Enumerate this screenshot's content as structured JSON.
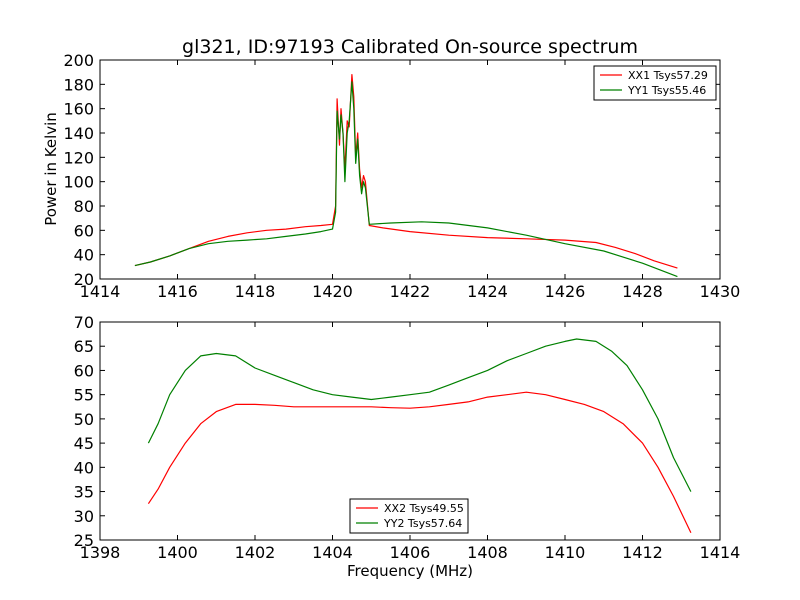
{
  "chart_data": [
    {
      "type": "line",
      "title": "gl321, ID:97193 Calibrated On-source spectrum",
      "xlabel": "",
      "ylabel": "Power in Kelvin",
      "xlim": [
        1414,
        1430
      ],
      "ylim": [
        20,
        200
      ],
      "xticks": [
        1414,
        1416,
        1418,
        1420,
        1422,
        1424,
        1426,
        1428,
        1430
      ],
      "yticks": [
        20,
        40,
        60,
        80,
        100,
        120,
        140,
        160,
        180,
        200
      ],
      "grid": false,
      "legend": "top-right",
      "series": [
        {
          "name": "XX1 Tsys57.29",
          "color": "#ff0000",
          "points": [
            [
              1414.9,
              31
            ],
            [
              1415.3,
              34
            ],
            [
              1415.8,
              39
            ],
            [
              1416.3,
              45
            ],
            [
              1416.8,
              51
            ],
            [
              1417.3,
              55
            ],
            [
              1417.8,
              58
            ],
            [
              1418.3,
              60
            ],
            [
              1418.8,
              61
            ],
            [
              1419.3,
              63
            ],
            [
              1419.7,
              64
            ],
            [
              1420.0,
              65
            ],
            [
              1420.08,
              80
            ],
            [
              1420.12,
              168
            ],
            [
              1420.18,
              130
            ],
            [
              1420.22,
              160
            ],
            [
              1420.27,
              140
            ],
            [
              1420.32,
              110
            ],
            [
              1420.38,
              150
            ],
            [
              1420.43,
              145
            ],
            [
              1420.5,
              188
            ],
            [
              1420.55,
              170
            ],
            [
              1420.6,
              120
            ],
            [
              1420.65,
              140
            ],
            [
              1420.7,
              110
            ],
            [
              1420.75,
              95
            ],
            [
              1420.8,
              105
            ],
            [
              1420.85,
              100
            ],
            [
              1420.95,
              64
            ],
            [
              1421.3,
              62
            ],
            [
              1422.0,
              59
            ],
            [
              1423.0,
              56
            ],
            [
              1424.0,
              54
            ],
            [
              1425.0,
              53
            ],
            [
              1426.0,
              52
            ],
            [
              1426.8,
              50
            ],
            [
              1427.3,
              46
            ],
            [
              1427.8,
              41
            ],
            [
              1428.3,
              35
            ],
            [
              1428.9,
              29
            ]
          ]
        },
        {
          "name": "YY1 Tsys55.46",
          "color": "#008000",
          "points": [
            [
              1414.9,
              31
            ],
            [
              1415.3,
              34
            ],
            [
              1415.8,
              39
            ],
            [
              1416.3,
              45
            ],
            [
              1416.8,
              49
            ],
            [
              1417.3,
              51
            ],
            [
              1417.8,
              52
            ],
            [
              1418.3,
              53
            ],
            [
              1418.8,
              55
            ],
            [
              1419.3,
              57
            ],
            [
              1419.7,
              59
            ],
            [
              1420.0,
              61
            ],
            [
              1420.08,
              75
            ],
            [
              1420.12,
              158
            ],
            [
              1420.18,
              135
            ],
            [
              1420.22,
              155
            ],
            [
              1420.27,
              140
            ],
            [
              1420.32,
              100
            ],
            [
              1420.38,
              140
            ],
            [
              1420.43,
              150
            ],
            [
              1420.5,
              182
            ],
            [
              1420.55,
              160
            ],
            [
              1420.6,
              115
            ],
            [
              1420.65,
              135
            ],
            [
              1420.7,
              105
            ],
            [
              1420.75,
              90
            ],
            [
              1420.8,
              100
            ],
            [
              1420.85,
              95
            ],
            [
              1420.95,
              65
            ],
            [
              1421.5,
              66
            ],
            [
              1422.3,
              67
            ],
            [
              1423.0,
              66
            ],
            [
              1424.0,
              62
            ],
            [
              1425.0,
              56
            ],
            [
              1426.0,
              49
            ],
            [
              1427.0,
              43
            ],
            [
              1428.0,
              33
            ],
            [
              1428.9,
              22
            ]
          ]
        }
      ]
    },
    {
      "type": "line",
      "title": "",
      "xlabel": "Frequency (MHz)",
      "ylabel": "",
      "xlim": [
        1398,
        1414
      ],
      "ylim": [
        25,
        70
      ],
      "xticks": [
        1398,
        1400,
        1402,
        1404,
        1406,
        1408,
        1410,
        1412,
        1414
      ],
      "yticks": [
        25,
        30,
        35,
        40,
        45,
        50,
        55,
        60,
        65,
        70
      ],
      "grid": false,
      "legend": "bottom-center",
      "series": [
        {
          "name": "XX2 Tsys49.55",
          "color": "#ff0000",
          "points": [
            [
              1399.25,
              32.5
            ],
            [
              1399.5,
              35.5
            ],
            [
              1399.8,
              40
            ],
            [
              1400.2,
              45
            ],
            [
              1400.6,
              49
            ],
            [
              1401.0,
              51.5
            ],
            [
              1401.5,
              53
            ],
            [
              1402.0,
              53
            ],
            [
              1402.5,
              52.8
            ],
            [
              1403.0,
              52.5
            ],
            [
              1403.5,
              52.5
            ],
            [
              1404.0,
              52.5
            ],
            [
              1404.5,
              52.5
            ],
            [
              1405.0,
              52.5
            ],
            [
              1405.5,
              52.3
            ],
            [
              1406.0,
              52.2
            ],
            [
              1406.5,
              52.5
            ],
            [
              1407.0,
              53
            ],
            [
              1407.5,
              53.5
            ],
            [
              1408.0,
              54.5
            ],
            [
              1408.5,
              55
            ],
            [
              1409.0,
              55.5
            ],
            [
              1409.5,
              55
            ],
            [
              1410.0,
              54
            ],
            [
              1410.5,
              53
            ],
            [
              1411.0,
              51.5
            ],
            [
              1411.5,
              49
            ],
            [
              1412.0,
              45
            ],
            [
              1412.4,
              40
            ],
            [
              1412.8,
              34
            ],
            [
              1413.25,
              26.5
            ]
          ]
        },
        {
          "name": "YY2 Tsys57.64",
          "color": "#008000",
          "points": [
            [
              1399.25,
              45
            ],
            [
              1399.5,
              49
            ],
            [
              1399.8,
              55
            ],
            [
              1400.2,
              60
            ],
            [
              1400.6,
              63
            ],
            [
              1401.0,
              63.5
            ],
            [
              1401.5,
              63
            ],
            [
              1402.0,
              60.5
            ],
            [
              1402.5,
              59
            ],
            [
              1403.0,
              57.5
            ],
            [
              1403.5,
              56
            ],
            [
              1404.0,
              55
            ],
            [
              1404.5,
              54.5
            ],
            [
              1405.0,
              54
            ],
            [
              1405.5,
              54.5
            ],
            [
              1406.0,
              55
            ],
            [
              1406.5,
              55.5
            ],
            [
              1407.0,
              57
            ],
            [
              1407.5,
              58.5
            ],
            [
              1408.0,
              60
            ],
            [
              1408.5,
              62
            ],
            [
              1409.0,
              63.5
            ],
            [
              1409.5,
              65
            ],
            [
              1410.0,
              66
            ],
            [
              1410.3,
              66.5
            ],
            [
              1410.8,
              66
            ],
            [
              1411.2,
              64
            ],
            [
              1411.6,
              61
            ],
            [
              1412.0,
              56
            ],
            [
              1412.4,
              50
            ],
            [
              1412.8,
              42
            ],
            [
              1413.25,
              35
            ]
          ]
        }
      ]
    }
  ]
}
